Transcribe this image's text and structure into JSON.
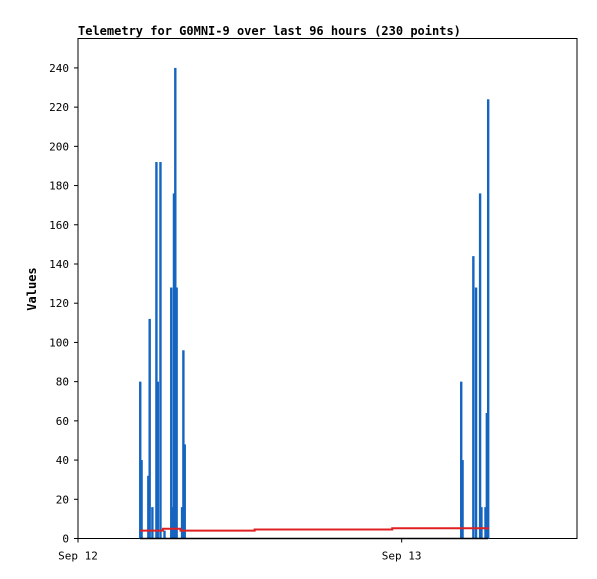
{
  "chart_data": {
    "type": "bar",
    "title": "Telemetry for G0MNI-9 over last 96 hours (230 points)",
    "xlabel": "",
    "ylabel": "Values",
    "ylim": [
      0,
      255
    ],
    "yticks": [
      0,
      20,
      40,
      60,
      80,
      100,
      120,
      140,
      160,
      180,
      200,
      220,
      240
    ],
    "x_range_hours": [
      0,
      37
    ],
    "xticks": [
      {
        "label": "Sep 12",
        "hour": 0
      },
      {
        "label": "Sep 13",
        "hour": 24
      }
    ],
    "grid": false,
    "legend": "none",
    "series": [
      {
        "type": "bar",
        "color": "#1565c0",
        "points": [
          {
            "hour": 4.6,
            "value": 80
          },
          {
            "hour": 4.7,
            "value": 40
          },
          {
            "hour": 5.2,
            "value": 32
          },
          {
            "hour": 5.3,
            "value": 112
          },
          {
            "hour": 5.5,
            "value": 16
          },
          {
            "hour": 5.8,
            "value": 192
          },
          {
            "hour": 5.9,
            "value": 80
          },
          {
            "hour": 6.1,
            "value": 192
          },
          {
            "hour": 6.4,
            "value": 4
          },
          {
            "hour": 6.9,
            "value": 128
          },
          {
            "hour": 7.0,
            "value": 16
          },
          {
            "hour": 7.1,
            "value": 176
          },
          {
            "hour": 7.2,
            "value": 240
          },
          {
            "hour": 7.3,
            "value": 128
          },
          {
            "hour": 7.7,
            "value": 16
          },
          {
            "hour": 7.8,
            "value": 96
          },
          {
            "hour": 7.9,
            "value": 48
          },
          {
            "hour": 28.4,
            "value": 80
          },
          {
            "hour": 28.5,
            "value": 40
          },
          {
            "hour": 29.3,
            "value": 144
          },
          {
            "hour": 29.5,
            "value": 128
          },
          {
            "hour": 29.8,
            "value": 176
          },
          {
            "hour": 29.9,
            "value": 16
          },
          {
            "hour": 30.2,
            "value": 16
          },
          {
            "hour": 30.3,
            "value": 64
          },
          {
            "hour": 30.4,
            "value": 224
          }
        ]
      },
      {
        "type": "step-line",
        "color": "#e02020",
        "points": [
          {
            "hour": 4.6,
            "value": 4
          },
          {
            "hour": 6.2,
            "value": 4
          },
          {
            "hour": 6.3,
            "value": 5
          },
          {
            "hour": 7.6,
            "value": 4
          },
          {
            "hour": 13.1,
            "value": 4.6
          },
          {
            "hour": 23.3,
            "value": 5.2
          },
          {
            "hour": 30.4,
            "value": 4.6
          }
        ]
      },
      {
        "type": "line",
        "color": "#000000",
        "points": [
          {
            "hour": 4.6,
            "value": 0
          },
          {
            "hour": 30.4,
            "value": 0
          }
        ]
      }
    ]
  }
}
